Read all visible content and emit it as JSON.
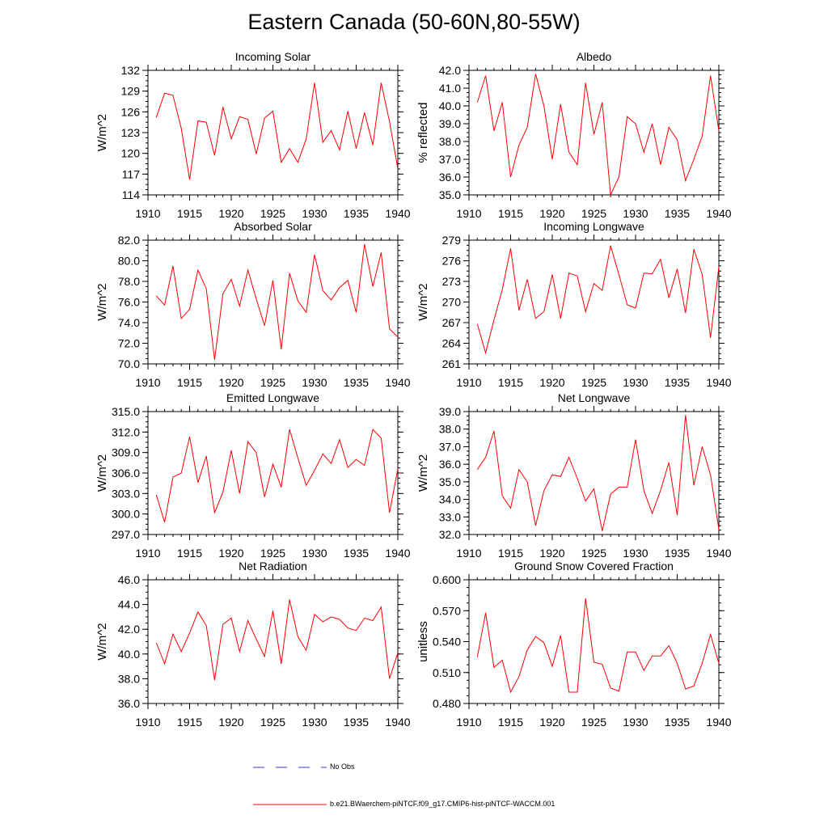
{
  "page": {
    "title": "Eastern Canada (50-60N,80-55W)"
  },
  "colors": {
    "model_line": "#ff0000",
    "obs_line": "#3333cc",
    "axes": "#000000"
  },
  "legend": {
    "obs_label": "No Obs",
    "model_label": "b.e21.BWaerchem-piNTCF.f09_g17.CMIP6-hist-piNTCF-WACCM.001"
  },
  "chart_data": [
    {
      "type": "line",
      "title": "Incoming Solar",
      "ylabel": "W/m^2",
      "xlim": [
        1910,
        1940
      ],
      "ylim": [
        114,
        132
      ],
      "yticks": [
        114,
        117,
        120,
        123,
        126,
        129,
        132
      ],
      "ytick_labels": [
        "114",
        "117",
        "120",
        "123",
        "126",
        "129",
        "132"
      ],
      "xticks": [
        1910,
        1915,
        1920,
        1925,
        1930,
        1935,
        1940
      ],
      "xtick_labels": [
        "1910",
        "1915",
        "1920",
        "1925",
        "1930",
        "1935",
        "1940"
      ],
      "series": [
        {
          "x": [
            1911,
            1912,
            1913,
            1914,
            1915,
            1916,
            1917,
            1918,
            1919,
            1920,
            1921,
            1922,
            1923,
            1924,
            1925,
            1926,
            1927,
            1928,
            1929,
            1930,
            1931,
            1932,
            1933,
            1934,
            1935,
            1936,
            1937,
            1938,
            1939,
            1940
          ],
          "values": [
            125.2,
            128.7,
            128.4,
            123.6,
            116.2,
            124.7,
            124.5,
            119.7,
            126.7,
            122.1,
            125.3,
            124.9,
            119.9,
            125.1,
            126.1,
            118.7,
            120.7,
            118.7,
            122.1,
            130.2,
            121.6,
            123.3,
            120.5,
            126.1,
            120.7,
            125.9,
            121.2,
            130.2,
            124.6,
            117.8
          ]
        }
      ]
    },
    {
      "type": "line",
      "title": "Albedo",
      "ylabel": "% reflected",
      "xlim": [
        1910,
        1940
      ],
      "ylim": [
        35.0,
        42.0
      ],
      "yticks": [
        35,
        36,
        37,
        38,
        39,
        40,
        41,
        42
      ],
      "ytick_labels": [
        "35.0",
        "36.0",
        "37.0",
        "38.0",
        "39.0",
        "40.0",
        "41.0",
        "42.0"
      ],
      "xticks": [
        1910,
        1915,
        1920,
        1925,
        1930,
        1935,
        1940
      ],
      "xtick_labels": [
        "1910",
        "1915",
        "1920",
        "1925",
        "1930",
        "1935",
        "1940"
      ],
      "series": [
        {
          "x": [
            1911,
            1912,
            1913,
            1914,
            1915,
            1916,
            1917,
            1918,
            1919,
            1920,
            1921,
            1922,
            1923,
            1924,
            1925,
            1926,
            1927,
            1928,
            1929,
            1930,
            1931,
            1932,
            1933,
            1934,
            1935,
            1936,
            1937,
            1938,
            1939,
            1940
          ],
          "values": [
            40.2,
            41.7,
            38.6,
            40.2,
            36.0,
            37.8,
            38.8,
            41.8,
            40.0,
            37.0,
            40.1,
            37.4,
            36.7,
            41.3,
            38.4,
            40.2,
            35.0,
            36.0,
            39.4,
            39.0,
            37.4,
            39.0,
            36.7,
            38.8,
            38.1,
            35.8,
            37.0,
            38.3,
            41.7,
            38.6
          ]
        }
      ]
    },
    {
      "type": "line",
      "title": "Absorbed Solar",
      "ylabel": "W/m^2",
      "xlim": [
        1910,
        1940
      ],
      "ylim": [
        70.0,
        82.0
      ],
      "yticks": [
        70,
        72,
        74,
        76,
        78,
        80,
        82
      ],
      "ytick_labels": [
        "70.0",
        "72.0",
        "74.0",
        "76.0",
        "78.0",
        "80.0",
        "82.0"
      ],
      "xticks": [
        1910,
        1915,
        1920,
        1925,
        1930,
        1935,
        1940
      ],
      "xtick_labels": [
        "1910",
        "1915",
        "1920",
        "1925",
        "1930",
        "1935",
        "1940"
      ],
      "series": [
        {
          "x": [
            1911,
            1912,
            1913,
            1914,
            1915,
            1916,
            1917,
            1918,
            1919,
            1920,
            1921,
            1922,
            1923,
            1924,
            1925,
            1926,
            1927,
            1928,
            1929,
            1930,
            1931,
            1932,
            1933,
            1934,
            1935,
            1936,
            1937,
            1938,
            1939,
            1940
          ],
          "values": [
            76.6,
            75.7,
            79.5,
            74.4,
            75.3,
            79.1,
            77.3,
            70.4,
            76.8,
            78.2,
            75.6,
            79.1,
            76.3,
            73.7,
            78.1,
            71.4,
            78.8,
            76.1,
            75.0,
            80.6,
            77.1,
            76.2,
            77.4,
            78.1,
            75.0,
            81.6,
            77.5,
            80.8,
            73.4,
            72.6
          ]
        }
      ]
    },
    {
      "type": "line",
      "title": "Incoming Longwave",
      "ylabel": "W/m^2",
      "xlim": [
        1910,
        1940
      ],
      "ylim": [
        261,
        279
      ],
      "yticks": [
        261,
        264,
        267,
        270,
        273,
        276,
        279
      ],
      "ytick_labels": [
        "261",
        "264",
        "267",
        "270",
        "273",
        "276",
        "279"
      ],
      "xticks": [
        1910,
        1915,
        1920,
        1925,
        1930,
        1935,
        1940
      ],
      "xtick_labels": [
        "1910",
        "1915",
        "1920",
        "1925",
        "1930",
        "1935",
        "1940"
      ],
      "series": [
        {
          "x": [
            1911,
            1912,
            1913,
            1914,
            1915,
            1916,
            1917,
            1918,
            1919,
            1920,
            1921,
            1922,
            1923,
            1924,
            1925,
            1926,
            1927,
            1928,
            1929,
            1930,
            1931,
            1932,
            1933,
            1934,
            1935,
            1936,
            1937,
            1938,
            1939,
            1940
          ],
          "values": [
            266.8,
            262.6,
            267.4,
            271.8,
            277.8,
            268.8,
            273.3,
            267.6,
            268.6,
            274.0,
            267.6,
            274.2,
            273.8,
            268.6,
            272.7,
            271.7,
            278.2,
            274.0,
            269.6,
            269.1,
            274.2,
            274.1,
            276.2,
            270.6,
            274.8,
            268.4,
            277.7,
            274.0,
            264.8,
            275.1
          ]
        }
      ]
    },
    {
      "type": "line",
      "title": "Emitted Longwave",
      "ylabel": "W/m^2",
      "xlim": [
        1910,
        1940
      ],
      "ylim": [
        297.0,
        315.0
      ],
      "yticks": [
        297,
        300,
        303,
        306,
        309,
        312,
        315
      ],
      "ytick_labels": [
        "297.0",
        "300.0",
        "303.0",
        "306.0",
        "309.0",
        "312.0",
        "315.0"
      ],
      "xticks": [
        1910,
        1915,
        1920,
        1925,
        1930,
        1935,
        1940
      ],
      "xtick_labels": [
        "1910",
        "1915",
        "1920",
        "1925",
        "1930",
        "1935",
        "1940"
      ],
      "series": [
        {
          "x": [
            1911,
            1912,
            1913,
            1914,
            1915,
            1916,
            1917,
            1918,
            1919,
            1920,
            1921,
            1922,
            1923,
            1924,
            1925,
            1926,
            1927,
            1928,
            1929,
            1930,
            1931,
            1932,
            1933,
            1934,
            1935,
            1936,
            1937,
            1938,
            1939,
            1940
          ],
          "values": [
            302.8,
            298.8,
            305.4,
            306.0,
            311.3,
            304.6,
            308.5,
            300.2,
            303.2,
            309.3,
            303.0,
            310.6,
            309.0,
            302.5,
            307.3,
            303.9,
            312.4,
            308.2,
            304.2,
            306.4,
            308.8,
            307.4,
            310.9,
            306.8,
            308.0,
            307.1,
            312.4,
            311.1,
            300.2,
            306.6
          ]
        }
      ]
    },
    {
      "type": "line",
      "title": "Net Longwave",
      "ylabel": "W/m^2",
      "xlim": [
        1910,
        1940
      ],
      "ylim": [
        32.0,
        39.0
      ],
      "yticks": [
        32,
        33,
        34,
        35,
        36,
        37,
        38,
        39
      ],
      "ytick_labels": [
        "32.0",
        "33.0",
        "34.0",
        "35.0",
        "36.0",
        "37.0",
        "38.0",
        "39.0"
      ],
      "xticks": [
        1910,
        1915,
        1920,
        1925,
        1930,
        1935,
        1940
      ],
      "xtick_labels": [
        "1910",
        "1915",
        "1920",
        "1925",
        "1930",
        "1935",
        "1940"
      ],
      "series": [
        {
          "x": [
            1911,
            1912,
            1913,
            1914,
            1915,
            1916,
            1917,
            1918,
            1919,
            1920,
            1921,
            1922,
            1923,
            1924,
            1925,
            1926,
            1927,
            1928,
            1929,
            1930,
            1931,
            1932,
            1933,
            1934,
            1935,
            1936,
            1937,
            1938,
            1939,
            1940
          ],
          "values": [
            35.7,
            36.4,
            37.9,
            34.2,
            33.5,
            35.7,
            35.0,
            32.5,
            34.5,
            35.4,
            35.3,
            36.4,
            35.2,
            33.9,
            34.6,
            32.2,
            34.3,
            34.7,
            34.7,
            37.4,
            34.5,
            33.2,
            34.5,
            36.1,
            33.1,
            38.8,
            34.8,
            37.0,
            35.4,
            32.3
          ]
        }
      ]
    },
    {
      "type": "line",
      "title": "Net Radiation",
      "ylabel": "W/m^2",
      "xlim": [
        1910,
        1940
      ],
      "ylim": [
        36.0,
        46.0
      ],
      "yticks": [
        36,
        38,
        40,
        42,
        44,
        46
      ],
      "ytick_labels": [
        "36.0",
        "38.0",
        "40.0",
        "42.0",
        "44.0",
        "46.0"
      ],
      "xticks": [
        1910,
        1915,
        1920,
        1925,
        1930,
        1935,
        1940
      ],
      "xtick_labels": [
        "1910",
        "1915",
        "1920",
        "1925",
        "1930",
        "1935",
        "1940"
      ],
      "series": [
        {
          "x": [
            1911,
            1912,
            1913,
            1914,
            1915,
            1916,
            1917,
            1918,
            1919,
            1920,
            1921,
            1922,
            1923,
            1924,
            1925,
            1926,
            1927,
            1928,
            1929,
            1930,
            1931,
            1932,
            1933,
            1934,
            1935,
            1936,
            1937,
            1938,
            1939,
            1940
          ],
          "values": [
            40.9,
            39.2,
            41.6,
            40.2,
            41.7,
            43.4,
            42.3,
            37.9,
            42.4,
            42.9,
            40.2,
            42.7,
            41.2,
            39.8,
            43.5,
            39.2,
            44.4,
            41.4,
            40.3,
            43.2,
            42.6,
            43.0,
            42.8,
            42.1,
            41.9,
            42.9,
            42.7,
            43.8,
            38.0,
            40.1
          ]
        }
      ]
    },
    {
      "type": "line",
      "title": "Ground Snow Covered Fraction",
      "ylabel": "unitless",
      "xlim": [
        1910,
        1940
      ],
      "ylim": [
        0.48,
        0.6
      ],
      "yticks": [
        0.48,
        0.51,
        0.54,
        0.57,
        0.6
      ],
      "ytick_labels": [
        "0.480",
        "0.510",
        "0.540",
        "0.570",
        "0.600"
      ],
      "xticks": [
        1910,
        1915,
        1920,
        1925,
        1930,
        1935,
        1940
      ],
      "xtick_labels": [
        "1910",
        "1915",
        "1920",
        "1925",
        "1930",
        "1935",
        "1940"
      ],
      "series": [
        {
          "x": [
            1911,
            1912,
            1913,
            1914,
            1915,
            1916,
            1917,
            1918,
            1919,
            1920,
            1921,
            1922,
            1923,
            1924,
            1925,
            1926,
            1927,
            1928,
            1929,
            1930,
            1931,
            1932,
            1933,
            1934,
            1935,
            1936,
            1937,
            1938,
            1939,
            1940
          ],
          "values": [
            0.525,
            0.568,
            0.515,
            0.522,
            0.491,
            0.506,
            0.532,
            0.545,
            0.539,
            0.516,
            0.546,
            0.491,
            0.491,
            0.582,
            0.52,
            0.518,
            0.495,
            0.492,
            0.53,
            0.53,
            0.512,
            0.526,
            0.526,
            0.536,
            0.519,
            0.494,
            0.497,
            0.519,
            0.547,
            0.519
          ]
        }
      ]
    }
  ]
}
